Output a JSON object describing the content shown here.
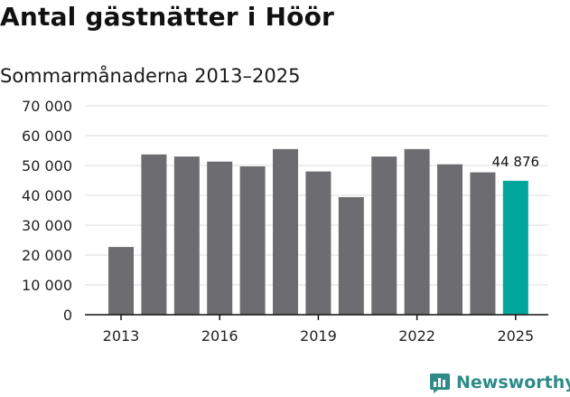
{
  "title": "Antal gästnätter i Höör",
  "subtitle": "Sommarmånaderna 2013–2025",
  "brand": {
    "name": "Newsworthy",
    "icon": "bar-chart-logo-icon",
    "color": "#2e8b87"
  },
  "chart_data": {
    "type": "bar",
    "categories": [
      "2013",
      "2014",
      "2015",
      "2016",
      "2017",
      "2018",
      "2019",
      "2020",
      "2021",
      "2022",
      "2023",
      "2024",
      "2025"
    ],
    "values": [
      22700,
      53700,
      53000,
      51300,
      49700,
      55500,
      48000,
      39400,
      53000,
      55500,
      50400,
      47700,
      44876
    ],
    "ylim": [
      0,
      70000
    ],
    "y_ticks": [
      0,
      10000,
      20000,
      30000,
      40000,
      50000,
      60000,
      70000
    ],
    "y_tick_labels": [
      "0",
      "10 000",
      "20 000",
      "30 000",
      "40 000",
      "50 000",
      "60 000",
      "70 000"
    ],
    "x_tick_labels": [
      "2013",
      "2016",
      "2019",
      "2022",
      "2025"
    ],
    "bar_color": "#6d6d71",
    "highlight_color": "#00a59b",
    "highlight_category": "2025",
    "data_label": {
      "category": "2025",
      "text": "44 876"
    },
    "grid": true
  }
}
